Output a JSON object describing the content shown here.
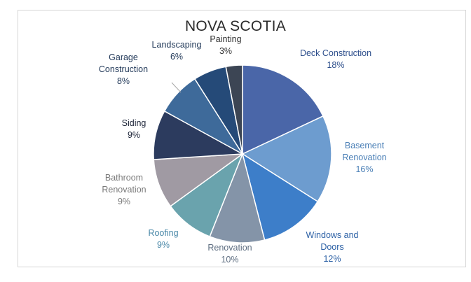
{
  "chart_data": {
    "type": "pie",
    "title": "NOVA SCOTIA",
    "series": [
      {
        "label": "Deck Construction",
        "value": 18,
        "percent_label": "18%",
        "color": "#4a66a8",
        "label_color": "#2e4f8c"
      },
      {
        "label": "Basement Renovation",
        "value": 16,
        "percent_label": "16%",
        "color": "#6d9ccf",
        "label_color": "#4a7fb6"
      },
      {
        "label": "Windows and Doors",
        "value": 12,
        "percent_label": "12%",
        "color": "#3d7ec9",
        "label_color": "#2e62a6"
      },
      {
        "label": "Renovation",
        "value": 10,
        "percent_label": "10%",
        "color": "#8494a8",
        "label_color": "#5f6f82"
      },
      {
        "label": "Roofing",
        "value": 9,
        "percent_label": "9%",
        "color": "#6aa3ad",
        "label_color": "#4a88a8"
      },
      {
        "label": "Bathroom Renovation",
        "value": 9,
        "percent_label": "9%",
        "color": "#a09aa3",
        "label_color": "#7a7a7a"
      },
      {
        "label": "Siding",
        "value": 9,
        "percent_label": "9%",
        "color": "#2c3b5e",
        "label_color": "#1c2438"
      },
      {
        "label": "Garage Construction",
        "value": 8,
        "percent_label": "8%",
        "color": "#3e6a9a",
        "label_color": "#233a5a"
      },
      {
        "label": "Landscaping",
        "value": 6,
        "percent_label": "6%",
        "color": "#254a78",
        "label_color": "#1e3656"
      },
      {
        "label": "Painting",
        "value": 3,
        "percent_label": "3%",
        "color": "#3c4554",
        "label_color": "#333333"
      }
    ]
  }
}
